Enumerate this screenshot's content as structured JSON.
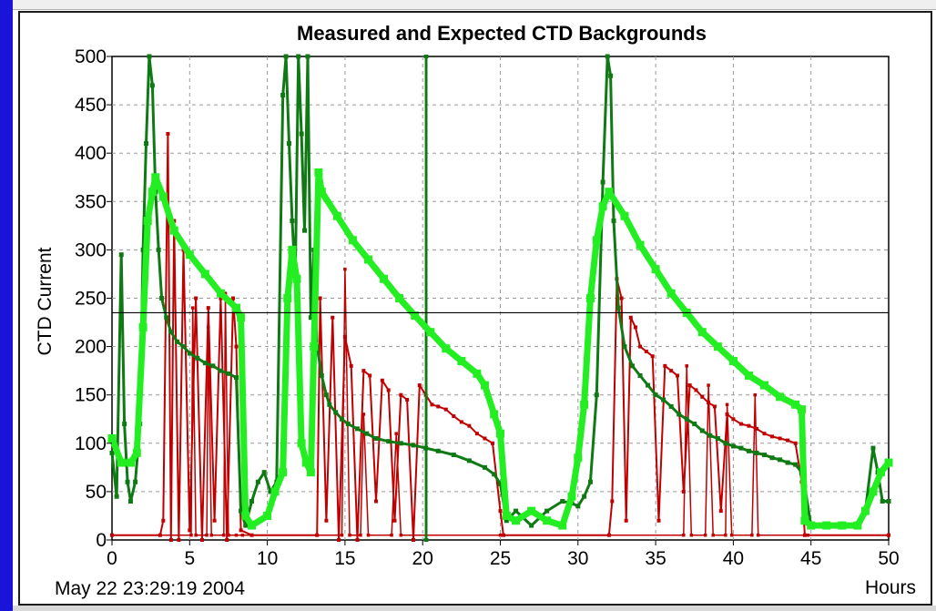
{
  "colors": {
    "left_bar": "#1a14d8",
    "measured": "#c00000",
    "expected_dark": "#0f7a14",
    "expected_light": "#22ee22",
    "grid": "#9a9a9a",
    "threshold": "#000000"
  },
  "chart_data": {
    "type": "line",
    "title": "Measured and Expected CTD Backgrounds",
    "ylabel": "CTD Current",
    "xlabel": "Hours",
    "timestamp": "May 22 23:29:19 2004",
    "xlim": [
      0,
      50
    ],
    "ylim": [
      0,
      500
    ],
    "xticks": [
      0,
      5,
      10,
      15,
      20,
      25,
      30,
      35,
      40,
      45,
      50
    ],
    "yticks": [
      0,
      50,
      100,
      150,
      200,
      250,
      300,
      350,
      400,
      450,
      500
    ],
    "grid": true,
    "threshold_y": 235,
    "series": [
      {
        "color": "#c00000",
        "width": 2,
        "x": [
          0,
          3.1,
          3.3,
          3.6,
          3.8,
          4.0,
          4.3,
          4.6,
          5.0,
          5.4,
          5.8,
          6.2,
          6.6,
          7.0,
          7.4,
          7.8,
          8.0,
          8.3,
          9.0,
          13.2,
          13.4,
          13.8,
          14.2,
          14.6,
          15.0,
          15.4,
          15.8,
          16.2,
          16.6,
          17.0,
          17.4,
          17.8,
          18.2,
          18.6,
          19.0,
          19.4,
          19.8,
          20.2,
          20.6,
          21.0,
          21.5,
          22.0,
          22.5,
          23.0,
          23.5,
          24.0,
          24.5,
          25.0,
          25.2,
          32.0,
          32.2,
          32.5,
          32.8,
          33.1,
          33.4,
          33.7,
          34.0,
          34.4,
          34.8,
          35.2,
          35.6,
          36.0,
          36.4,
          36.8,
          37.2,
          37.6,
          38.0,
          38.4,
          38.8,
          39.2,
          39.6,
          40.0,
          40.5,
          41.0,
          41.5,
          42.0,
          42.5,
          43.0,
          43.5,
          44.0,
          44.4,
          44.6,
          50
        ],
        "y": [
          5,
          5,
          20,
          420,
          0,
          330,
          0,
          300,
          10,
          250,
          0,
          240,
          20,
          250,
          0,
          250,
          200,
          10,
          5,
          5,
          250,
          20,
          230,
          0,
          210,
          180,
          0,
          175,
          170,
          40,
          165,
          155,
          20,
          150,
          145,
          0,
          160,
          150,
          140,
          138,
          135,
          128,
          122,
          118,
          110,
          105,
          100,
          30,
          5,
          5,
          40,
          270,
          250,
          20,
          230,
          220,
          200,
          195,
          190,
          20,
          180,
          175,
          170,
          50,
          160,
          155,
          148,
          142,
          138,
          30,
          130,
          125,
          120,
          118,
          115,
          110,
          107,
          105,
          103,
          100,
          60,
          5,
          5
        ]
      },
      {
        "color": "#c00000",
        "width": 1.5,
        "x": [
          0,
          5.1,
          5.2,
          5.4,
          6.1,
          6.2,
          6.4,
          7.2,
          7.3,
          7.5,
          8.0,
          8.4,
          14.8,
          15.0,
          15.3,
          16.0,
          16.2,
          16.5,
          18.0,
          18.3,
          18.6,
          25.0,
          36.8,
          37.0,
          37.3,
          38.2,
          38.4,
          38.7,
          39.5,
          39.6,
          39.9,
          41.2,
          41.4,
          41.6,
          44.8,
          50
        ],
        "y": [
          5,
          5,
          240,
          5,
          5,
          220,
          5,
          5,
          255,
          5,
          5,
          5,
          5,
          280,
          5,
          5,
          130,
          5,
          5,
          110,
          5,
          5,
          5,
          180,
          5,
          5,
          160,
          5,
          5,
          140,
          5,
          5,
          150,
          5,
          5,
          5
        ]
      },
      {
        "color": "#0f7a14",
        "width": 3,
        "x": [
          0,
          0.3,
          0.6,
          0.8,
          1.0,
          1.2,
          1.5,
          1.8,
          2.0,
          2.2,
          2.4,
          2.6,
          2.8,
          3.0,
          3.2,
          3.5,
          3.8,
          4.2,
          4.6,
          5.0,
          5.5,
          6.0,
          6.5,
          7.0,
          7.5,
          8.0,
          8.3,
          8.6,
          9.0,
          9.4,
          9.8,
          10.2,
          10.6,
          11.0,
          11.2,
          11.4,
          11.6,
          11.8,
          12.0,
          12.2,
          12.4,
          12.6,
          12.8,
          13.0,
          13.2,
          13.5,
          13.8,
          14.0,
          14.4,
          14.8,
          15.2,
          15.8,
          16.4,
          17.0,
          17.8,
          18.6,
          19.4,
          20.2,
          21.0,
          22.0,
          23.0,
          24.0,
          24.6,
          25.0,
          25.4,
          26.0,
          27.0,
          28.0,
          29.0,
          29.6,
          30.0,
          30.4,
          30.8,
          31.2,
          31.6,
          31.9,
          32.1,
          32.3,
          32.6,
          33.0,
          33.5,
          34.0,
          34.5,
          35.0,
          35.5,
          36.0,
          36.5,
          37.0,
          37.5,
          38.0,
          38.5,
          39.0,
          39.5,
          40.0,
          40.5,
          41.0,
          41.5,
          42.0,
          42.5,
          43.0,
          43.5,
          44.0,
          44.4,
          44.6,
          45.0,
          46.0,
          47.0,
          48.0,
          48.5,
          49.0,
          49.3,
          49.6,
          50.0
        ],
        "y": [
          90,
          45,
          295,
          120,
          60,
          40,
          60,
          120,
          300,
          410,
          500,
          470,
          360,
          300,
          250,
          230,
          215,
          205,
          200,
          193,
          188,
          183,
          180,
          175,
          172,
          168,
          30,
          15,
          40,
          60,
          70,
          50,
          60,
          460,
          500,
          410,
          330,
          270,
          500,
          420,
          320,
          500,
          230,
          300,
          200,
          170,
          150,
          140,
          132,
          125,
          120,
          115,
          110,
          105,
          102,
          100,
          98,
          95,
          92,
          88,
          82,
          75,
          68,
          58,
          20,
          30,
          15,
          30,
          40,
          38,
          35,
          45,
          60,
          150,
          370,
          500,
          480,
          330,
          240,
          200,
          180,
          170,
          160,
          150,
          145,
          138,
          130,
          125,
          120,
          113,
          108,
          105,
          100,
          97,
          95,
          92,
          90,
          88,
          85,
          83,
          80,
          78,
          70,
          55,
          15,
          15,
          15,
          15,
          30,
          95,
          70,
          40,
          40
        ]
      },
      {
        "color": "#0f7a14",
        "width": 2,
        "x": [
          20.2,
          20.2,
          20.25,
          20.25
        ],
        "y": [
          0,
          500,
          500,
          0
        ]
      },
      {
        "color": "#22ee22",
        "width": 7,
        "x": [
          0,
          0.6,
          1.2,
          1.6,
          2.0,
          2.3,
          2.6,
          2.8,
          3.3,
          4.0,
          5.0,
          6.0,
          7.0,
          8.0,
          8.3,
          8.6,
          9.0,
          10.0,
          10.5,
          11.0,
          11.3,
          11.6,
          11.9,
          12.2,
          12.5,
          12.8,
          13.0,
          13.3,
          13.5,
          14.5,
          15.5,
          16.5,
          17.5,
          18.5,
          19.5,
          20.5,
          21.5,
          22.5,
          23.5,
          24.0,
          24.6,
          25.0,
          25.4,
          26.0,
          27.0,
          28.0,
          29.0,
          29.6,
          30.0,
          30.4,
          30.8,
          31.2,
          31.6,
          32.0,
          33.0,
          34.0,
          35.0,
          36.0,
          37.0,
          38.0,
          39.0,
          40.0,
          41.0,
          42.0,
          43.0,
          44.0,
          44.4,
          44.6,
          45.0,
          46.0,
          47.0,
          48.0,
          48.5,
          49.0,
          49.5,
          50.0
        ],
        "y": [
          105,
          80,
          80,
          90,
          220,
          330,
          360,
          375,
          355,
          320,
          295,
          275,
          255,
          240,
          230,
          25,
          15,
          25,
          50,
          70,
          250,
          300,
          270,
          100,
          80,
          70,
          200,
          380,
          360,
          335,
          310,
          290,
          270,
          250,
          232,
          215,
          198,
          185,
          172,
          160,
          130,
          110,
          25,
          20,
          30,
          20,
          15,
          45,
          85,
          140,
          250,
          310,
          345,
          360,
          335,
          305,
          280,
          255,
          235,
          215,
          200,
          185,
          170,
          160,
          148,
          140,
          135,
          20,
          15,
          15,
          15,
          15,
          30,
          50,
          70,
          80
        ]
      }
    ]
  }
}
